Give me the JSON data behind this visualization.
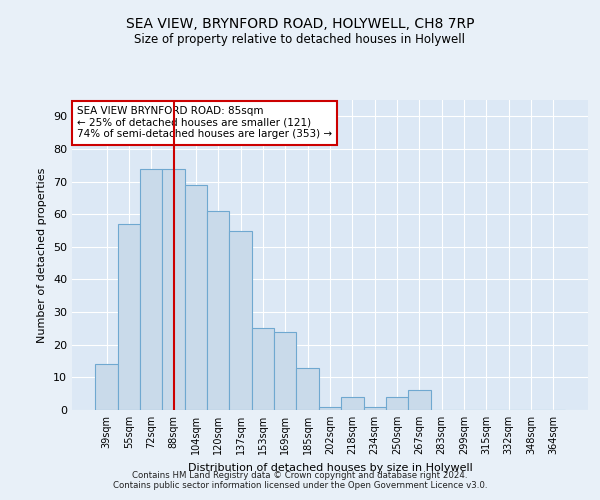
{
  "title": "SEA VIEW, BRYNFORD ROAD, HOLYWELL, CH8 7RP",
  "subtitle": "Size of property relative to detached houses in Holywell",
  "xlabel": "Distribution of detached houses by size in Holywell",
  "ylabel": "Number of detached properties",
  "categories": [
    "39sqm",
    "55sqm",
    "72sqm",
    "88sqm",
    "104sqm",
    "120sqm",
    "137sqm",
    "153sqm",
    "169sqm",
    "185sqm",
    "202sqm",
    "218sqm",
    "234sqm",
    "250sqm",
    "267sqm",
    "283sqm",
    "299sqm",
    "315sqm",
    "332sqm",
    "348sqm",
    "364sqm"
  ],
  "values": [
    14,
    57,
    74,
    74,
    69,
    61,
    55,
    25,
    24,
    13,
    1,
    4,
    1,
    4,
    6,
    0,
    0,
    0,
    0,
    0,
    0
  ],
  "bar_color": "#c9daea",
  "bar_edge_color": "#6fa8d0",
  "vline_x": 3,
  "vline_color": "#cc0000",
  "annotation_text": "SEA VIEW BRYNFORD ROAD: 85sqm\n← 25% of detached houses are smaller (121)\n74% of semi-detached houses are larger (353) →",
  "annotation_box_color": "#ffffff",
  "annotation_box_edge_color": "#cc0000",
  "ylim": [
    0,
    95
  ],
  "yticks": [
    0,
    10,
    20,
    30,
    40,
    50,
    60,
    70,
    80,
    90
  ],
  "footer": "Contains HM Land Registry data © Crown copyright and database right 2024.\nContains public sector information licensed under the Open Government Licence v3.0.",
  "background_color": "#e8f0f8",
  "plot_bg_color": "#dce8f5"
}
